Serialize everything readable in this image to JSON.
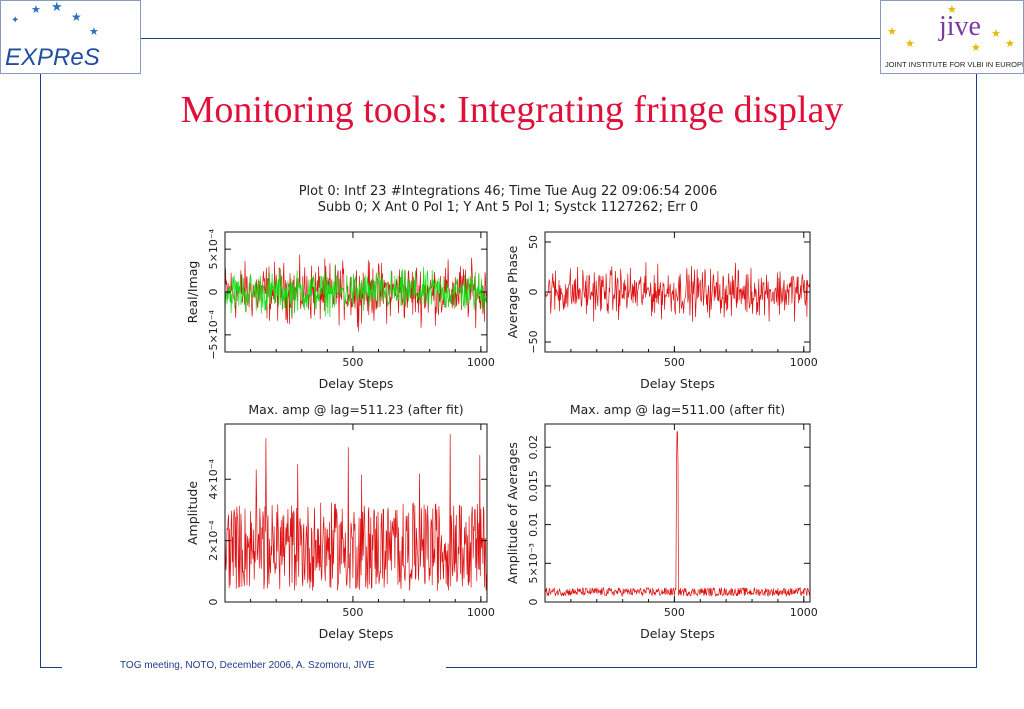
{
  "slide": {
    "title": "Monitoring tools: Integrating fringe display",
    "footer": "TOG meeting, NOTO, December 2006, A. Szomoru, JIVE"
  },
  "logos": {
    "left_text": "EXPReS",
    "right_text": "jive",
    "right_caption": "JOINT INSTITUTE FOR VLBI IN EUROPE"
  },
  "colors": {
    "frame": "#1f3c88",
    "title": "#e0103a",
    "real": "#dd1111",
    "imag": "#11dd11"
  },
  "figure_header": {
    "line1": "Plot 0: Intf 23 #Integrations 46; Time Tue Aug 22 09:06:54 2006",
    "line2": "Subb 0; X Ant 0 Pol 1; Y Ant 5 Pol 1; Systck 1127262; Err 0"
  },
  "chart_data": [
    {
      "type": "line",
      "ylabel": "Real/Imag",
      "xlabel": "Delay Steps",
      "xlim": [
        0,
        1024
      ],
      "ylim": [
        -0.0007,
        0.0007
      ],
      "x_ticks": [
        "500",
        "1000"
      ],
      "y_ticks": [
        "5x10^-4",
        "0",
        "-5x10^-4"
      ],
      "series": [
        {
          "color": "#dd1111",
          "noise_amplitude": 0.00025
        },
        {
          "color": "#11dd11",
          "noise_amplitude": 0.00018
        }
      ]
    },
    {
      "type": "line",
      "ylabel": "Average Phase",
      "xlabel": "Delay Steps",
      "xlim": [
        0,
        1024
      ],
      "ylim": [
        -60,
        60
      ],
      "x_ticks": [
        "500",
        "1000"
      ],
      "y_ticks": [
        "50",
        "0",
        "-50"
      ],
      "series": [
        {
          "color": "#dd1111",
          "noise_amplitude": 18
        }
      ]
    },
    {
      "type": "line",
      "title": "Max. amp @ lag=511.23 (after fit)",
      "ylabel": "Amplitude",
      "xlabel": "Delay Steps",
      "xlim": [
        0,
        1024
      ],
      "ylim": [
        0,
        0.00058
      ],
      "x_ticks": [
        "500",
        "1000"
      ],
      "y_ticks": [
        "4x10^-4",
        "2x10^-4",
        "0"
      ],
      "series": [
        {
          "color": "#dd1111",
          "mean": 0.00018,
          "max": 0.00055
        }
      ]
    },
    {
      "type": "line",
      "title": "Max. amp @ lag=511.00 (after fit)",
      "ylabel": "Amplitude of Averages",
      "xlabel": "Delay Steps",
      "xlim": [
        0,
        1024
      ],
      "ylim": [
        0,
        0.023
      ],
      "x_ticks": [
        "500",
        "1000"
      ],
      "y_ticks": [
        "0.02",
        "0.015",
        "0.01",
        "5x10^-3",
        "0"
      ],
      "series": [
        {
          "color": "#dd1111",
          "baseline": 0.0012,
          "peak_x": 511,
          "peak_y": 0.022
        }
      ]
    }
  ]
}
